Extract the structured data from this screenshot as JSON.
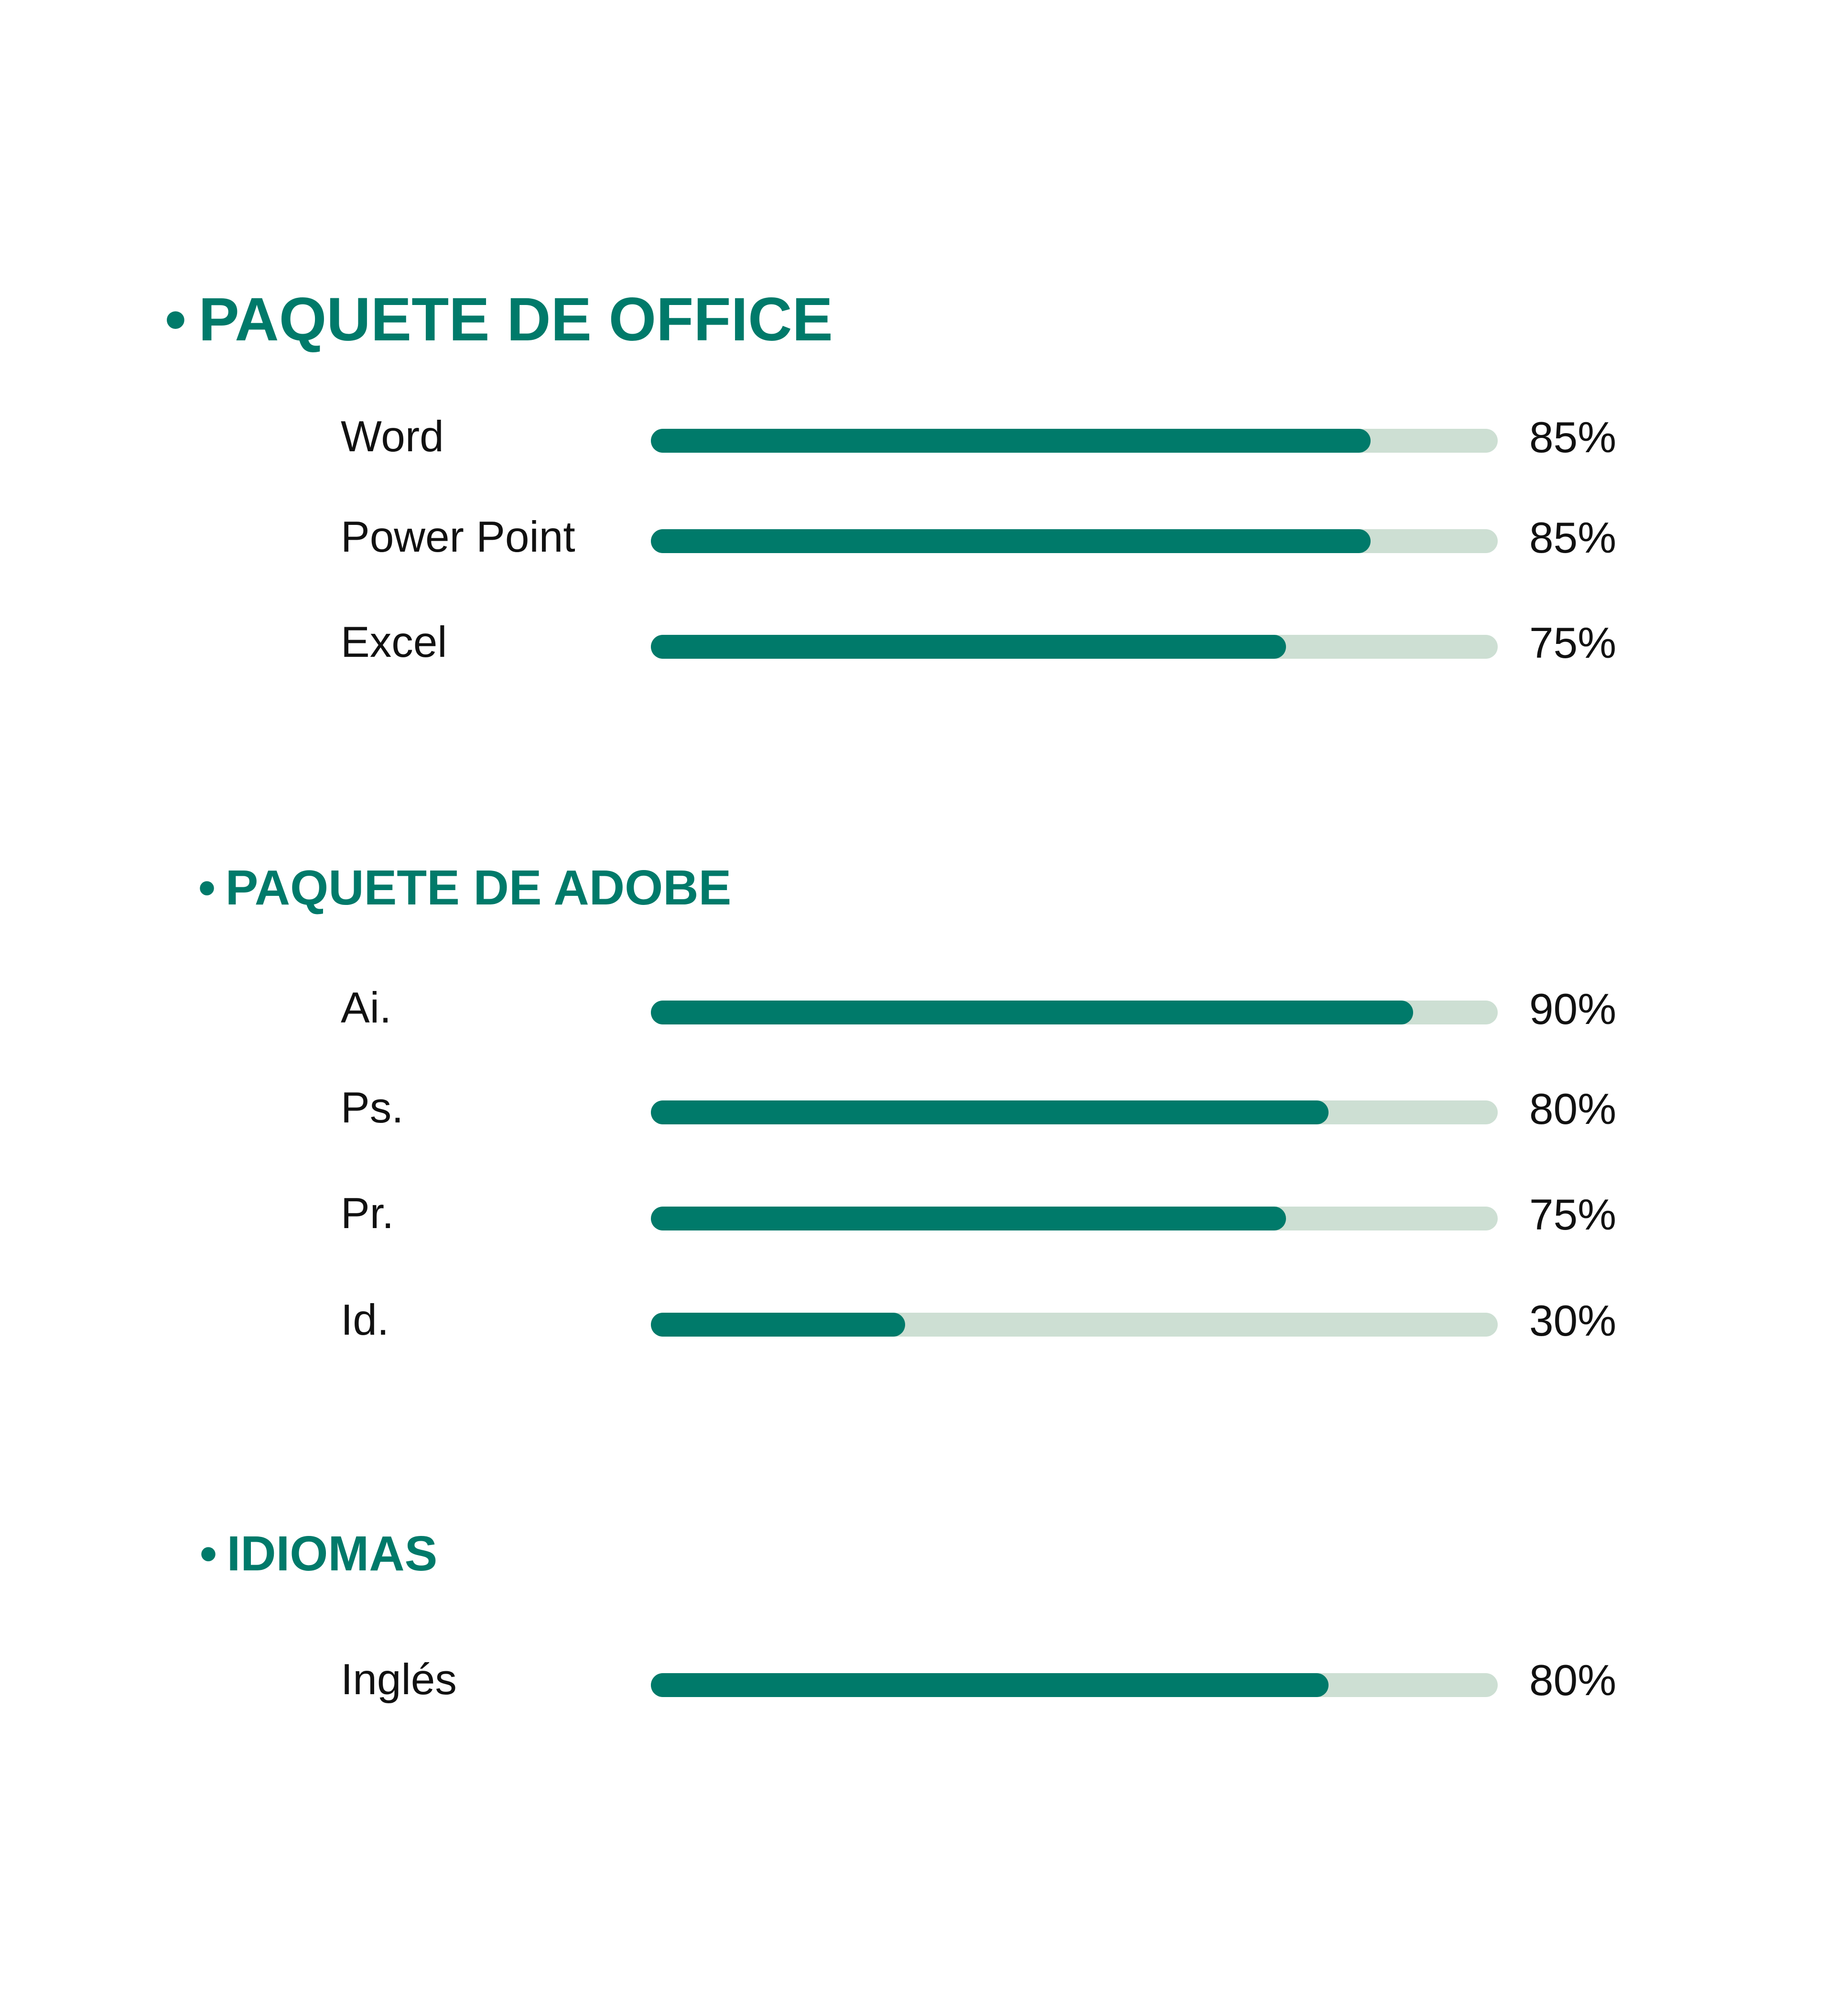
{
  "colors": {
    "accent": "#007a6a",
    "track": "#cddfd3",
    "text": "#111111",
    "background": "#ffffff"
  },
  "sections": [
    {
      "bullet": "•",
      "title": "PAQUETE DE OFFICE",
      "skills": [
        {
          "label": "Word",
          "value": 85,
          "percent_label": "85%"
        },
        {
          "label": "Power Point",
          "value": 85,
          "percent_label": "85%"
        },
        {
          "label": "Excel",
          "value": 75,
          "percent_label": "75%"
        }
      ]
    },
    {
      "bullet": "•",
      "title": "PAQUETE DE ADOBE",
      "skills": [
        {
          "label": "Ai.",
          "value": 90,
          "percent_label": "90%"
        },
        {
          "label": "Ps.",
          "value": 80,
          "percent_label": "80%"
        },
        {
          "label": "Pr.",
          "value": 75,
          "percent_label": "75%"
        },
        {
          "label": "Id.",
          "value": 30,
          "percent_label": "30%"
        }
      ]
    },
    {
      "bullet": "•",
      "title": "IDIOMAS",
      "skills": [
        {
          "label": "Inglés",
          "value": 80,
          "percent_label": "80%"
        }
      ]
    }
  ]
}
